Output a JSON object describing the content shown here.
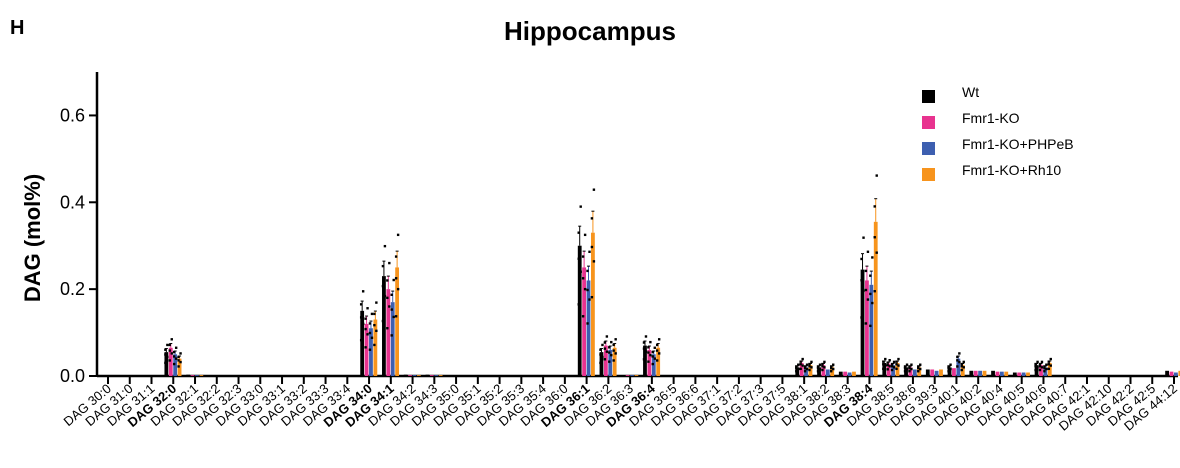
{
  "panel_letter": "H",
  "chart_data": {
    "type": "bar",
    "title": "Hippocampus",
    "xlabel": "",
    "ylabel": "DAG (mol%)",
    "ylim": [
      0,
      0.7
    ],
    "yticks": [
      "0.0",
      "0.2",
      "0.4",
      "0.6"
    ],
    "ytick_values": [
      0,
      0.2,
      0.4,
      0.6
    ],
    "legend_position": "top-right",
    "grid": false,
    "categories": [
      "DAG 30:0",
      "DAG 31:0",
      "DAG 31:1",
      "DAG 32:0",
      "DAG 32:1",
      "DAG 32:2",
      "DAG 32:3",
      "DAG 33:0",
      "DAG 33:1",
      "DAG 33:2",
      "DAG 33:3",
      "DAG 33:4",
      "DAG 34:0",
      "DAG 34:1",
      "DAG 34:2",
      "DAG 34:3",
      "DAG 35:0",
      "DAG 35:1",
      "DAG 35:2",
      "DAG 35:3",
      "DAG 35:4",
      "DAG 36:0",
      "DAG 36:1",
      "DAG 36:2",
      "DAG 36:3",
      "DAG 36:4",
      "DAG 36:5",
      "DAG 36:6",
      "DAG 37:1",
      "DAG 37:2",
      "DAG 37:3",
      "DAG 37:5",
      "DAG 38:1",
      "DAG 38:2",
      "DAG 38:3",
      "DAG 38:4",
      "DAG 38:5",
      "DAG 38:6",
      "DAG 39:3",
      "DAG 40:1",
      "DAG 40:2",
      "DAG 40:4",
      "DAG 40:5",
      "DAG 40:6",
      "DAG 40:7",
      "DAG 42:1",
      "DAG 42:10",
      "DAG 42:2",
      "DAG 42:5",
      "DAG 44:12"
    ],
    "bold_categories": [
      "DAG 32:0",
      "DAG 34:0",
      "DAG 34:1",
      "DAG 36:1",
      "DAG 36:4",
      "DAG 38:4"
    ],
    "series": [
      {
        "name": "Wt",
        "color": "#000000",
        "values": [
          0,
          0,
          0,
          0.055,
          0.003,
          0,
          0,
          0,
          0,
          0,
          0,
          0,
          0.15,
          0.23,
          0.003,
          0.003,
          0,
          0,
          0,
          0,
          0,
          0,
          0.3,
          0.055,
          0.002,
          0.07,
          0,
          0,
          0,
          0,
          0,
          0,
          0.02,
          0.02,
          0.01,
          0.245,
          0.03,
          0.02,
          0.015,
          0.02,
          0.012,
          0.012,
          0.008,
          0.025,
          0,
          0,
          0,
          0,
          0,
          0.012
        ]
      },
      {
        "name": "Fmr1-KO",
        "color": "#e8338f",
        "values": [
          0,
          0,
          0,
          0.065,
          0.002,
          0,
          0,
          0,
          0,
          0,
          0,
          0,
          0.12,
          0.2,
          0.002,
          0.002,
          0,
          0,
          0,
          0,
          0,
          0,
          0.25,
          0.07,
          0.002,
          0.06,
          0,
          0,
          0,
          0,
          0,
          0,
          0.03,
          0.025,
          0.01,
          0.22,
          0.028,
          0.02,
          0.015,
          0.018,
          0.012,
          0.01,
          0.008,
          0.025,
          0,
          0,
          0,
          0,
          0,
          0.01
        ]
      },
      {
        "name": "Fmr1-KO+PHPeB",
        "color": "#3d5fb0",
        "values": [
          0,
          0,
          0,
          0.05,
          0.002,
          0,
          0,
          0,
          0,
          0,
          0,
          0,
          0.11,
          0.17,
          0.002,
          0.002,
          0,
          0,
          0,
          0,
          0,
          0,
          0.22,
          0.06,
          0.002,
          0.05,
          0,
          0,
          0,
          0,
          0,
          0,
          0.02,
          0.015,
          0.008,
          0.21,
          0.025,
          0.015,
          0.012,
          0.04,
          0.012,
          0.01,
          0.008,
          0.02,
          0,
          0,
          0,
          0,
          0,
          0.008
        ]
      },
      {
        "name": "Fmr1-KO+Rh10",
        "color": "#f7941d",
        "values": [
          0,
          0,
          0,
          0.04,
          0.002,
          0,
          0,
          0,
          0,
          0,
          0,
          0,
          0.13,
          0.25,
          0.002,
          0.002,
          0,
          0,
          0,
          0,
          0,
          0,
          0.33,
          0.065,
          0.002,
          0.065,
          0,
          0,
          0,
          0,
          0,
          0,
          0.025,
          0.02,
          0.01,
          0.355,
          0.03,
          0.02,
          0.015,
          0.025,
          0.012,
          0.01,
          0.008,
          0.03,
          0,
          0,
          0,
          0,
          0,
          0.012
        ]
      }
    ]
  }
}
